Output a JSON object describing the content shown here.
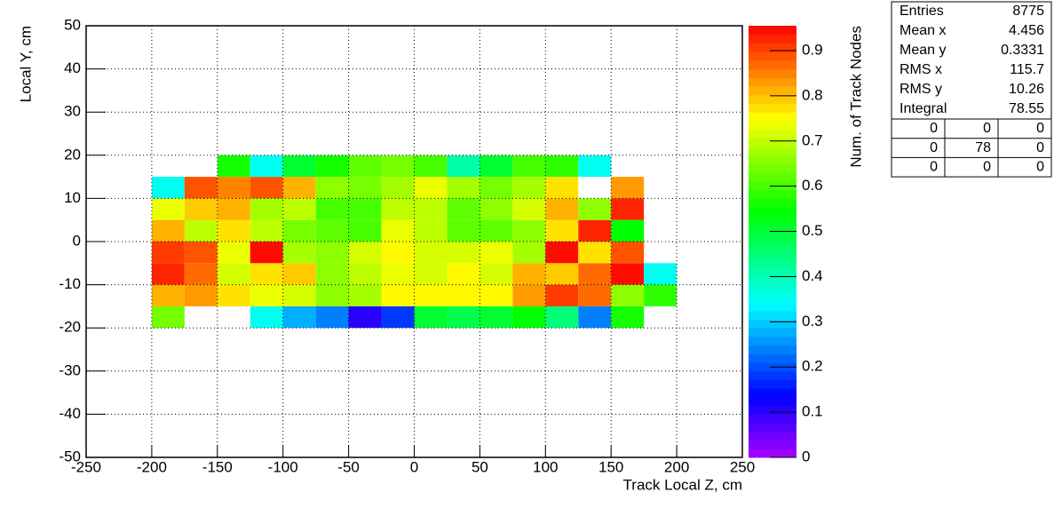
{
  "chart_data": {
    "type": "heatmap",
    "xlabel": "Track Local Z, cm",
    "ylabel": "Local Y, cm",
    "zlabel": "Num. of Track Nodes",
    "xlim": [
      -250,
      250
    ],
    "xticks": [
      -250,
      -200,
      -150,
      -100,
      -50,
      0,
      50,
      100,
      150,
      200,
      250
    ],
    "ylim": [
      -50,
      50
    ],
    "yticks": [
      -50,
      -40,
      -30,
      -20,
      -10,
      0,
      10,
      20,
      30,
      40,
      50
    ],
    "zlim": [
      0,
      0.955
    ],
    "zticks": [
      0,
      0.1,
      0.2,
      0.3,
      0.4,
      0.5,
      0.6,
      0.7,
      0.8,
      0.9
    ],
    "grid": true,
    "colormap": "rainbow",
    "xbins": [
      -200,
      -175,
      -150,
      -125,
      -100,
      -75,
      -50,
      -25,
      0,
      25,
      50,
      75,
      100,
      125,
      150,
      175,
      200
    ],
    "ybins": [
      -20,
      -15,
      -10,
      -5,
      0,
      5,
      10,
      15,
      20
    ],
    "z": [
      [
        0.64,
        null,
        null,
        0.35,
        0.28,
        0.24,
        0.1,
        0.18,
        0.5,
        0.48,
        0.5,
        0.55,
        0.45,
        0.24,
        0.56,
        null
      ],
      [
        0.82,
        0.83,
        0.78,
        0.74,
        0.72,
        0.65,
        0.67,
        0.76,
        0.76,
        0.76,
        0.76,
        0.84,
        0.9,
        0.86,
        0.66,
        0.58
      ],
      [
        0.92,
        0.86,
        0.72,
        0.77,
        0.8,
        0.66,
        0.7,
        0.74,
        0.72,
        0.76,
        0.72,
        0.82,
        0.8,
        0.86,
        0.95,
        0.35
      ],
      [
        0.9,
        0.88,
        0.73,
        0.95,
        0.68,
        0.66,
        0.72,
        0.76,
        0.71,
        0.72,
        0.73,
        0.68,
        0.94,
        0.77,
        0.88,
        null
      ],
      [
        0.82,
        0.7,
        0.77,
        0.7,
        0.64,
        0.62,
        0.6,
        0.74,
        0.7,
        0.62,
        0.63,
        0.66,
        0.78,
        0.92,
        0.55,
        null
      ],
      [
        0.74,
        0.8,
        0.82,
        0.68,
        0.7,
        0.6,
        0.6,
        0.69,
        0.7,
        0.63,
        0.66,
        0.72,
        0.82,
        0.66,
        0.93,
        null
      ],
      [
        0.35,
        0.88,
        0.85,
        0.88,
        0.82,
        0.66,
        0.64,
        0.68,
        0.74,
        0.68,
        0.64,
        0.67,
        0.77,
        null,
        0.84,
        null
      ],
      [
        null,
        null,
        0.57,
        0.35,
        0.5,
        0.57,
        0.62,
        0.64,
        0.6,
        0.42,
        0.5,
        0.6,
        0.58,
        0.35,
        null,
        null
      ]
    ],
    "stats": {
      "rows": [
        [
          "Entries",
          8775
        ],
        [
          "Mean x",
          4.456
        ],
        [
          "Mean y",
          0.3331
        ],
        [
          "RMS x",
          115.7
        ],
        [
          "RMS y",
          10.26
        ],
        [
          "Integral",
          78.55
        ]
      ],
      "overflow": [
        [
          0,
          0,
          0
        ],
        [
          0,
          78,
          0
        ],
        [
          0,
          0,
          0
        ]
      ]
    }
  }
}
